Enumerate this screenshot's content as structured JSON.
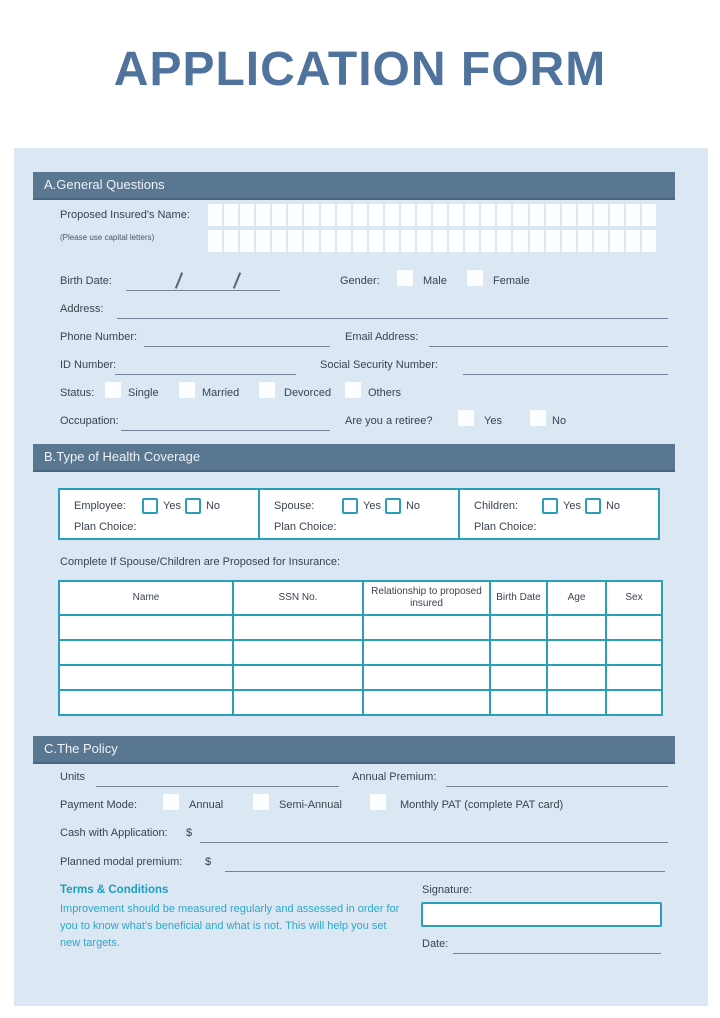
{
  "title": "APPLICATION FORM",
  "colors": {
    "panel_bg": "#dbe7f3",
    "section_bar": "#5a7792",
    "title_text": "#50739d",
    "teal_accent": "#2b9fb7",
    "terms_text": "#2fa7cb",
    "body_text": "#3a434f"
  },
  "section_a": {
    "header": "A.General Questions",
    "name_label": "Proposed Insured's Name:",
    "name_note": "(Please use capital letters)",
    "letter_rows": 2,
    "letter_cells_per_row": 28,
    "birth_date_label": "Birth Date:",
    "gender_label": "Gender:",
    "gender_options": [
      "Male",
      "Female"
    ],
    "address_label": "Address:",
    "phone_label": "Phone Number:",
    "email_label": "Email Address:",
    "id_label": "ID Number:",
    "ssn_label": "Social Security Number:",
    "status_label": "Status:",
    "status_options": [
      "Single",
      "Married",
      "Devorced",
      "Others"
    ],
    "occupation_label": "Occupation:",
    "retiree_label": "Are you a retiree?",
    "retiree_options": [
      "Yes",
      "No"
    ]
  },
  "section_b": {
    "header": "B.Type of Health Coverage",
    "coverage": [
      {
        "label": "Employee:",
        "yes": "Yes",
        "no": "No",
        "plan": "Plan Choice:"
      },
      {
        "label": "Spouse:",
        "yes": "Yes",
        "no": "No",
        "plan": "Plan Choice:"
      },
      {
        "label": "Children:",
        "yes": "Yes",
        "no": "No",
        "plan": "Plan Choice:"
      }
    ],
    "table_title": "Complete If Spouse/Children are Proposed for Insurance:",
    "table_headers": [
      "Name",
      "SSN No.",
      "Relationship to proposed insured",
      "Birth Date",
      "Age",
      "Sex"
    ],
    "table_col_widths": [
      174,
      130,
      127,
      57,
      59,
      56
    ],
    "table_row_count": 4
  },
  "section_c": {
    "header": "C.The Policy",
    "units_label": "Units",
    "annual_premium_label": "Annual Premium:",
    "payment_mode_label": "Payment Mode:",
    "payment_options": [
      "Annual",
      "Semi-Annual",
      "Monthly PAT (complete PAT card)"
    ],
    "cash_label": "Cash with Application:",
    "cash_currency": "$",
    "planned_label": "Planned modal premium:",
    "planned_currency": "$",
    "terms_title": "Terms & Conditions",
    "terms_body": "Improvement should be measured regularly and assessed in order for you to know what's beneficial and what is not. This will help you set new targets.",
    "signature_label": "Signature:",
    "date_label": "Date:"
  }
}
